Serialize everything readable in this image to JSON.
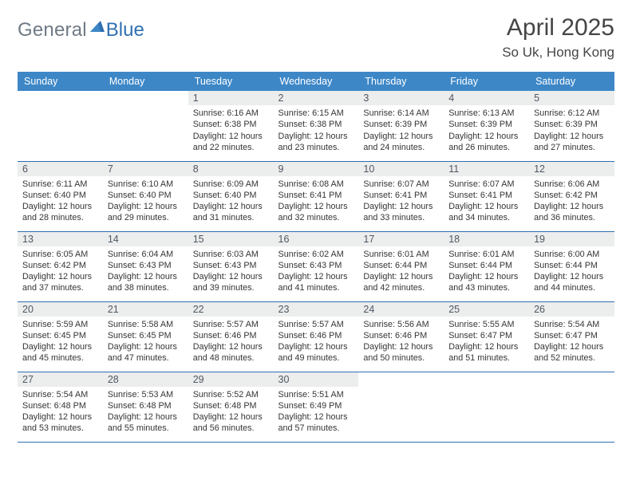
{
  "brand": {
    "a": "General",
    "b": "Blue"
  },
  "title": "April 2025",
  "location": "So Uk, Hong Kong",
  "colors": {
    "header_bg": "#3d87c7",
    "rule": "#2f6fb2",
    "daynum_bg": "#eceded"
  },
  "weekdays": [
    "Sunday",
    "Monday",
    "Tuesday",
    "Wednesday",
    "Thursday",
    "Friday",
    "Saturday"
  ],
  "weeks": [
    [
      null,
      null,
      {
        "n": "1",
        "sr": "6:16 AM",
        "ss": "6:38 PM",
        "dl": "12 hours and 22 minutes."
      },
      {
        "n": "2",
        "sr": "6:15 AM",
        "ss": "6:38 PM",
        "dl": "12 hours and 23 minutes."
      },
      {
        "n": "3",
        "sr": "6:14 AM",
        "ss": "6:39 PM",
        "dl": "12 hours and 24 minutes."
      },
      {
        "n": "4",
        "sr": "6:13 AM",
        "ss": "6:39 PM",
        "dl": "12 hours and 26 minutes."
      },
      {
        "n": "5",
        "sr": "6:12 AM",
        "ss": "6:39 PM",
        "dl": "12 hours and 27 minutes."
      }
    ],
    [
      {
        "n": "6",
        "sr": "6:11 AM",
        "ss": "6:40 PM",
        "dl": "12 hours and 28 minutes."
      },
      {
        "n": "7",
        "sr": "6:10 AM",
        "ss": "6:40 PM",
        "dl": "12 hours and 29 minutes."
      },
      {
        "n": "8",
        "sr": "6:09 AM",
        "ss": "6:40 PM",
        "dl": "12 hours and 31 minutes."
      },
      {
        "n": "9",
        "sr": "6:08 AM",
        "ss": "6:41 PM",
        "dl": "12 hours and 32 minutes."
      },
      {
        "n": "10",
        "sr": "6:07 AM",
        "ss": "6:41 PM",
        "dl": "12 hours and 33 minutes."
      },
      {
        "n": "11",
        "sr": "6:07 AM",
        "ss": "6:41 PM",
        "dl": "12 hours and 34 minutes."
      },
      {
        "n": "12",
        "sr": "6:06 AM",
        "ss": "6:42 PM",
        "dl": "12 hours and 36 minutes."
      }
    ],
    [
      {
        "n": "13",
        "sr": "6:05 AM",
        "ss": "6:42 PM",
        "dl": "12 hours and 37 minutes."
      },
      {
        "n": "14",
        "sr": "6:04 AM",
        "ss": "6:43 PM",
        "dl": "12 hours and 38 minutes."
      },
      {
        "n": "15",
        "sr": "6:03 AM",
        "ss": "6:43 PM",
        "dl": "12 hours and 39 minutes."
      },
      {
        "n": "16",
        "sr": "6:02 AM",
        "ss": "6:43 PM",
        "dl": "12 hours and 41 minutes."
      },
      {
        "n": "17",
        "sr": "6:01 AM",
        "ss": "6:44 PM",
        "dl": "12 hours and 42 minutes."
      },
      {
        "n": "18",
        "sr": "6:01 AM",
        "ss": "6:44 PM",
        "dl": "12 hours and 43 minutes."
      },
      {
        "n": "19",
        "sr": "6:00 AM",
        "ss": "6:44 PM",
        "dl": "12 hours and 44 minutes."
      }
    ],
    [
      {
        "n": "20",
        "sr": "5:59 AM",
        "ss": "6:45 PM",
        "dl": "12 hours and 45 minutes."
      },
      {
        "n": "21",
        "sr": "5:58 AM",
        "ss": "6:45 PM",
        "dl": "12 hours and 47 minutes."
      },
      {
        "n": "22",
        "sr": "5:57 AM",
        "ss": "6:46 PM",
        "dl": "12 hours and 48 minutes."
      },
      {
        "n": "23",
        "sr": "5:57 AM",
        "ss": "6:46 PM",
        "dl": "12 hours and 49 minutes."
      },
      {
        "n": "24",
        "sr": "5:56 AM",
        "ss": "6:46 PM",
        "dl": "12 hours and 50 minutes."
      },
      {
        "n": "25",
        "sr": "5:55 AM",
        "ss": "6:47 PM",
        "dl": "12 hours and 51 minutes."
      },
      {
        "n": "26",
        "sr": "5:54 AM",
        "ss": "6:47 PM",
        "dl": "12 hours and 52 minutes."
      }
    ],
    [
      {
        "n": "27",
        "sr": "5:54 AM",
        "ss": "6:48 PM",
        "dl": "12 hours and 53 minutes."
      },
      {
        "n": "28",
        "sr": "5:53 AM",
        "ss": "6:48 PM",
        "dl": "12 hours and 55 minutes."
      },
      {
        "n": "29",
        "sr": "5:52 AM",
        "ss": "6:48 PM",
        "dl": "12 hours and 56 minutes."
      },
      {
        "n": "30",
        "sr": "5:51 AM",
        "ss": "6:49 PM",
        "dl": "12 hours and 57 minutes."
      },
      null,
      null,
      null
    ]
  ],
  "labels": {
    "sunrise": "Sunrise:",
    "sunset": "Sunset:",
    "daylight": "Daylight:"
  }
}
